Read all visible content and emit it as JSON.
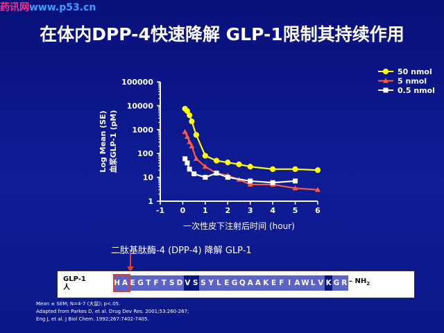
{
  "watermark": {
    "cn": "药讯网",
    "url": "www.p53.cn"
  },
  "title": "在体内DPP-4快速降解 GLP-1限制其持续作用",
  "chart_data": {
    "type": "line",
    "ylabel_line1": "Log Mean (SE)",
    "ylabel_line2": "血浆GLP-1 (pM)",
    "xlabel": "一次性皮下注射后时间 (hour)",
    "yscale": "log",
    "ylim": [
      1,
      100000
    ],
    "xlim": [
      -1,
      6
    ],
    "xticks": [
      "-1",
      "0",
      "1",
      "2",
      "3",
      "4",
      "5",
      "6"
    ],
    "yticks": [
      "1",
      "10",
      "100",
      "1000",
      "10000",
      "100000"
    ],
    "legend_position": "top-right",
    "series": [
      {
        "name": "50 nmol",
        "color": "#ffff00",
        "marker": "circle",
        "x": [
          0.1,
          0.2,
          0.3,
          0.4,
          0.6,
          1.0,
          1.5,
          2.0,
          2.5,
          3.0,
          4.0,
          5.0,
          6.0
        ],
        "y": [
          7500,
          6000,
          4000,
          2200,
          600,
          80,
          50,
          42,
          35,
          28,
          22,
          22,
          20
        ]
      },
      {
        "name": "5 nmol",
        "color": "#ff5a3c",
        "marker": "triangle",
        "x": [
          0.1,
          0.2,
          0.3,
          0.4,
          0.6,
          1.0,
          1.5,
          2.0,
          2.5,
          3.0,
          4.0,
          5.0,
          6.0
        ],
        "y": [
          800,
          500,
          300,
          200,
          60,
          28,
          15,
          12,
          8,
          5,
          5,
          3.5,
          3
        ]
      },
      {
        "name": "0.5 nmol",
        "color": "#ffffff",
        "marker": "square",
        "x": [
          0.1,
          0.2,
          0.3,
          0.5,
          1.0,
          1.5,
          2.0,
          3.0,
          4.0,
          5.0
        ],
        "y": [
          60,
          40,
          22,
          14,
          10,
          15,
          10,
          7,
          6,
          7
        ]
      }
    ]
  },
  "dpp4_note": "二肽基肽酶-4 (DPP-4) 降解 GLP-1",
  "sequence": {
    "label": "GLP-1",
    "sublabel": "人",
    "residues": [
      "H",
      "A",
      "E",
      "G",
      "T",
      "F",
      "T",
      "S",
      "D",
      "V",
      "S",
      "S",
      "Y",
      "L",
      "E",
      "G",
      "Q",
      "A",
      "A",
      "K",
      "E",
      "F",
      "I",
      "A",
      "W",
      "L",
      "V",
      "K",
      "G",
      "R"
    ],
    "dark_positions": [
      9,
      10,
      27
    ],
    "cterm": "– NH",
    "cterm_sub": "2"
  },
  "references": [
    "Mean ± SEM; N=4-7 (大鼠); p<.05.",
    "Adapted from Parkes D, et al. Drug Dev Res. 2001;53:260-267;",
    "Eng J, et al. J Biol Chem. 1992;267:7402-7405."
  ]
}
